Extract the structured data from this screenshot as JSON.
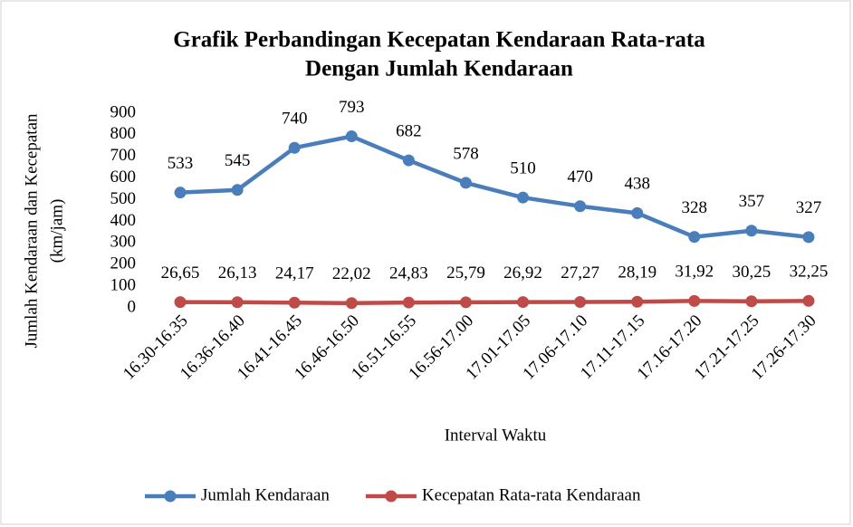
{
  "chart_data": {
    "type": "line",
    "title": [
      "Grafik Perbandingan Kecepatan Kendaraan Rata-rata",
      "Dengan Jumlah Kendaraan"
    ],
    "x_label": "Interval Waktu",
    "y_label": [
      "Jumlah Kendaraan  dan Kecepatan",
      "(km/jam)"
    ],
    "categories": [
      "16.30-16.35",
      "16.36-16.40",
      "16.41-16.45",
      "16.46-16.50",
      "16.51-16.55",
      "16.56-17.00",
      "17.01-17.05",
      "17.06-17.10",
      "17.11-17.15",
      "17.16-17.20",
      "17.21-17.25",
      "17.26-17.30"
    ],
    "series": [
      {
        "name": "Jumlah Kendaraan",
        "color": "#4a7ebb",
        "values": [
          533,
          545,
          740,
          793,
          682,
          578,
          510,
          470,
          438,
          328,
          357,
          327
        ]
      },
      {
        "name": "Kecepatan Rata-rata Kendaraan",
        "color": "#be4b48",
        "values": [
          26.65,
          26.13,
          24.17,
          22.02,
          24.83,
          25.79,
          26.92,
          27.27,
          28.19,
          31.92,
          30.25,
          32.25
        ],
        "value_labels": [
          "26,65",
          "26,13",
          "24,17",
          "22,02",
          "24,83",
          "25,79",
          "26,92",
          "27,27",
          "28,19",
          "31,92",
          "30,25",
          "32,25"
        ]
      }
    ],
    "ylim": [
      0,
      900
    ],
    "yticks": [
      0,
      100,
      200,
      300,
      400,
      500,
      600,
      700,
      800,
      900
    ],
    "grid": false,
    "legend": "bottom"
  }
}
